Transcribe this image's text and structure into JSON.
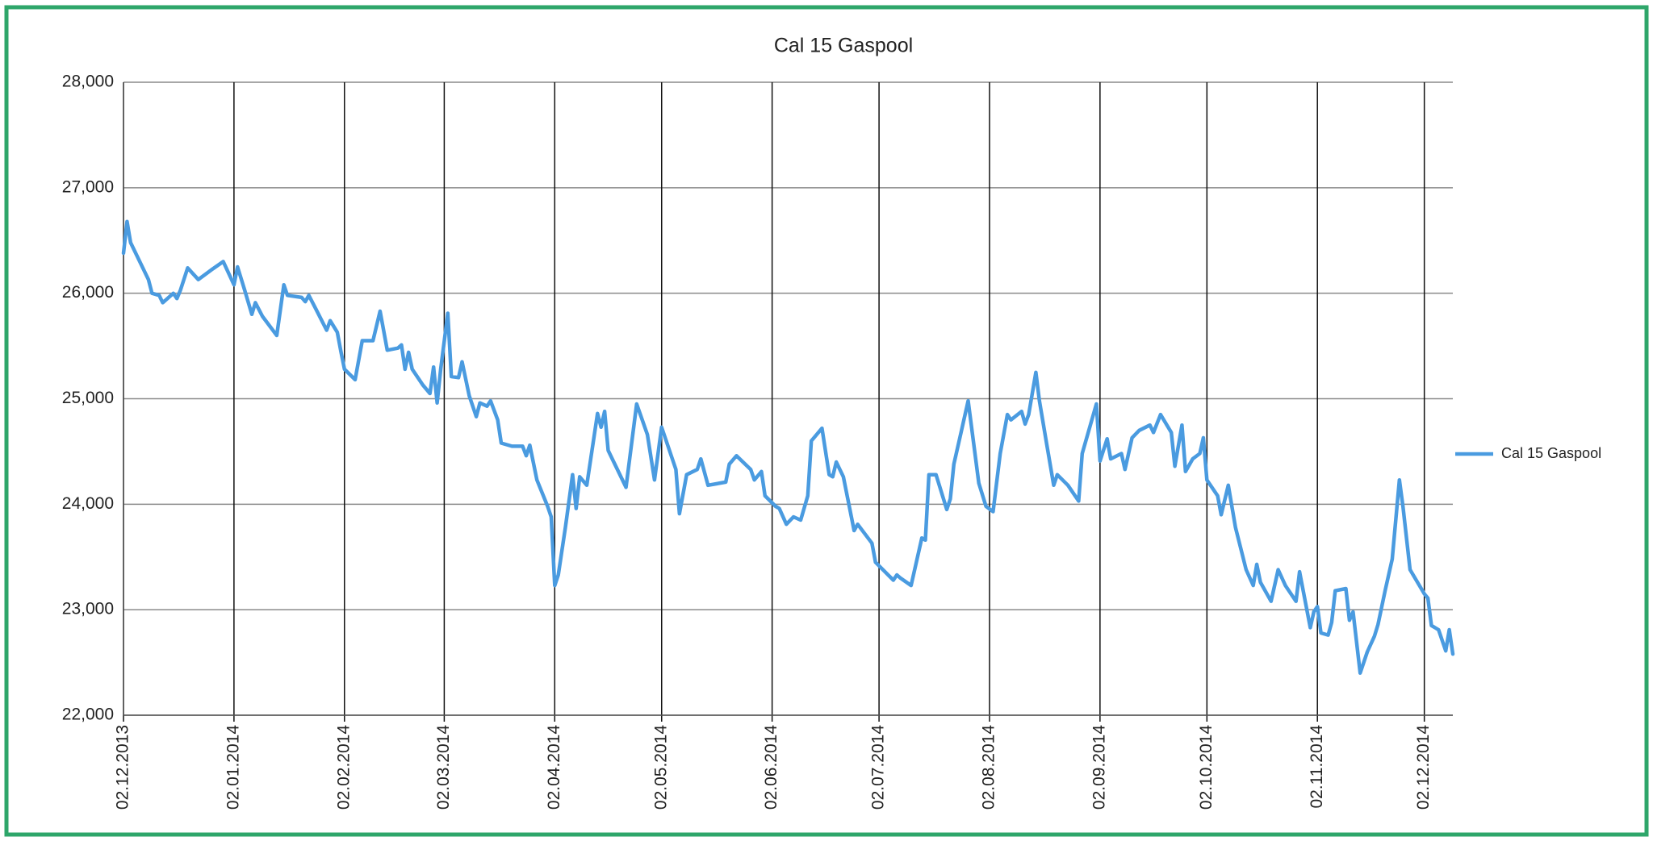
{
  "chart_data": {
    "type": "line",
    "title": "Cal 15 Gaspool",
    "ylim": [
      22000,
      28000
    ],
    "yticks": [
      {
        "value": 22000,
        "label": "22,000"
      },
      {
        "value": 23000,
        "label": "23,000"
      },
      {
        "value": 24000,
        "label": "24,000"
      },
      {
        "value": 25000,
        "label": "25,000"
      },
      {
        "value": 26000,
        "label": "26,000"
      },
      {
        "value": 27000,
        "label": "27,000"
      },
      {
        "value": 28000,
        "label": "28,000"
      }
    ],
    "xlim": [
      "02.12.2013",
      "10.12.2014"
    ],
    "xticks": [
      "02.12.2013",
      "02.01.2014",
      "02.02.2014",
      "02.03.2014",
      "02.04.2014",
      "02.05.2014",
      "02.06.2014",
      "02.07.2014",
      "02.08.2014",
      "02.09.2014",
      "02.10.2014",
      "02.11.2014",
      "02.12.2014"
    ],
    "grid": true,
    "legend": "right",
    "x": [
      "02.12.2013",
      "03.12.2013",
      "04.12.2013",
      "09.12.2013",
      "10.12.2013",
      "12.12.2013",
      "13.12.2013",
      "16.12.2013",
      "17.12.2013",
      "18.12.2013",
      "20.12.2013",
      "23.12.2013",
      "27.12.2013",
      "30.12.2013",
      "02.01.2014",
      "03.01.2014",
      "05.01.2014",
      "07.01.2014",
      "08.01.2014",
      "10.01.2014",
      "14.01.2014",
      "16.01.2014",
      "17.01.2014",
      "21.01.2014",
      "22.01.2014",
      "23.01.2014",
      "25.01.2014",
      "28.01.2014",
      "29.01.2014",
      "31.01.2014",
      "01.02.2014",
      "02.02.2014",
      "05.02.2014",
      "07.02.2014",
      "10.02.2014",
      "12.02.2014",
      "14.02.2014",
      "17.02.2014",
      "18.02.2014",
      "19.02.2014",
      "20.02.2014",
      "21.02.2014",
      "24.02.2014",
      "26.02.2014",
      "27.02.2014",
      "28.02.2014",
      "01.03.2014",
      "03.03.2014",
      "04.03.2014",
      "06.03.2014",
      "07.03.2014",
      "09.03.2014",
      "11.03.2014",
      "12.03.2014",
      "14.03.2014",
      "15.03.2014",
      "17.03.2014",
      "18.03.2014",
      "21.03.2014",
      "24.03.2014",
      "25.03.2014",
      "26.03.2014",
      "28.03.2014",
      "31.03.2014",
      "01.04.2014",
      "02.04.2014",
      "03.04.2014",
      "05.04.2014",
      "07.04.2014",
      "08.04.2014",
      "09.04.2014",
      "11.04.2014",
      "14.04.2014",
      "15.04.2014",
      "16.04.2014",
      "17.04.2014",
      "22.04.2014",
      "25.04.2014",
      "28.04.2014",
      "30.04.2014",
      "02.05.2014",
      "06.05.2014",
      "07.05.2014",
      "09.05.2014",
      "12.05.2014",
      "13.05.2014",
      "15.05.2014",
      "20.05.2014",
      "21.05.2014",
      "23.05.2014",
      "27.05.2014",
      "28.05.2014",
      "30.05.2014",
      "31.05.2014",
      "03.06.2014",
      "04.06.2014",
      "06.06.2014",
      "08.06.2014",
      "10.06.2014",
      "12.06.2014",
      "13.06.2014",
      "16.06.2014",
      "18.06.2014",
      "19.06.2014",
      "20.06.2014",
      "22.06.2014",
      "25.06.2014",
      "26.06.2014",
      "30.06.2014",
      "01.07.2014",
      "06.07.2014",
      "07.07.2014",
      "08.07.2014",
      "11.07.2014",
      "14.07.2014",
      "15.07.2014",
      "16.07.2014",
      "18.07.2014",
      "21.07.2014",
      "22.07.2014",
      "23.07.2014",
      "25.07.2014",
      "27.07.2014",
      "30.07.2014",
      "01.08.2014",
      "03.08.2014",
      "05.08.2014",
      "07.08.2014",
      "08.08.2014",
      "11.08.2014",
      "12.08.2014",
      "13.08.2014",
      "15.08.2014",
      "16.08.2014",
      "18.08.2014",
      "20.08.2014",
      "21.08.2014",
      "24.08.2014",
      "27.08.2014",
      "28.08.2014",
      "01.09.2014",
      "02.09.2014",
      "04.09.2014",
      "05.09.2014",
      "08.09.2014",
      "09.09.2014",
      "11.09.2014",
      "13.09.2014",
      "16.09.2014",
      "17.09.2014",
      "19.09.2014",
      "22.09.2014",
      "23.09.2014",
      "25.09.2014",
      "26.09.2014",
      "28.09.2014",
      "30.09.2014",
      "01.10.2014",
      "02.10.2014",
      "05.10.2014",
      "06.10.2014",
      "08.10.2014",
      "10.10.2014",
      "13.10.2014",
      "15.10.2014",
      "16.10.2014",
      "17.10.2014",
      "20.10.2014",
      "22.10.2014",
      "24.10.2014",
      "27.10.2014",
      "28.10.2014",
      "31.10.2014",
      "01.11.2014",
      "02.11.2014",
      "03.11.2014",
      "05.11.2014",
      "06.11.2014",
      "07.11.2014",
      "10.11.2014",
      "11.11.2014",
      "12.11.2014",
      "14.11.2014",
      "16.11.2014",
      "18.11.2014",
      "19.11.2014",
      "21.11.2014",
      "23.11.2014",
      "25.11.2014",
      "26.11.2014",
      "28.11.2014",
      "02.12.2014",
      "03.12.2014",
      "04.12.2014",
      "06.12.2014",
      "08.12.2014",
      "09.12.2014",
      "10.12.2014"
    ],
    "series": [
      {
        "name": "Cal 15 Gaspool",
        "color": "#4a9be0",
        "values": [
          26380,
          26680,
          26480,
          26130,
          26000,
          25980,
          25910,
          26000,
          25950,
          26030,
          26240,
          26130,
          26230,
          26300,
          26080,
          26250,
          26030,
          25800,
          25910,
          25780,
          25600,
          26080,
          25980,
          25960,
          25920,
          25980,
          25850,
          25650,
          25740,
          25630,
          25450,
          25280,
          25180,
          25550,
          25550,
          25830,
          25460,
          25480,
          25510,
          25280,
          25440,
          25280,
          25130,
          25050,
          25300,
          24960,
          25280,
          25810,
          25210,
          25200,
          25350,
          25030,
          24830,
          24960,
          24930,
          24980,
          24800,
          24580,
          24550,
          24550,
          24460,
          24560,
          24230,
          23980,
          23880,
          23230,
          23330,
          23780,
          24280,
          23960,
          24260,
          24180,
          24860,
          24730,
          24880,
          24510,
          24160,
          24950,
          24660,
          24230,
          24730,
          24330,
          23910,
          24280,
          24330,
          24430,
          24180,
          24210,
          24380,
          24460,
          24330,
          24230,
          24310,
          24080,
          23980,
          23960,
          23810,
          23880,
          23850,
          24080,
          24600,
          24720,
          24280,
          24260,
          24400,
          24260,
          23750,
          23810,
          23630,
          23450,
          23280,
          23330,
          23300,
          23230,
          23680,
          23660,
          24280,
          24280,
          23950,
          24050,
          24380,
          24680,
          24980,
          24200,
          23980,
          23930,
          24480,
          24850,
          24800,
          24880,
          24760,
          24850,
          25250,
          24980,
          24580,
          24180,
          24280,
          24180,
          24030,
          24480,
          24950,
          24410,
          24620,
          24430,
          24480,
          24330,
          24630,
          24700,
          24750,
          24680,
          24850,
          24680,
          24360,
          24750,
          24310,
          24430,
          24480,
          24630,
          24230,
          24080,
          23900,
          24180,
          23780,
          23380,
          23230,
          23430,
          23260,
          23080,
          23380,
          23230,
          23080,
          23360,
          22830,
          22980,
          23030,
          22780,
          22760,
          22880,
          23180,
          23200,
          22900,
          22980,
          22400,
          22600,
          22750,
          22860,
          23180,
          23480,
          24230,
          23980,
          23380,
          23150,
          23110,
          22850,
          22810,
          22610,
          22810,
          22580
        ]
      }
    ]
  }
}
